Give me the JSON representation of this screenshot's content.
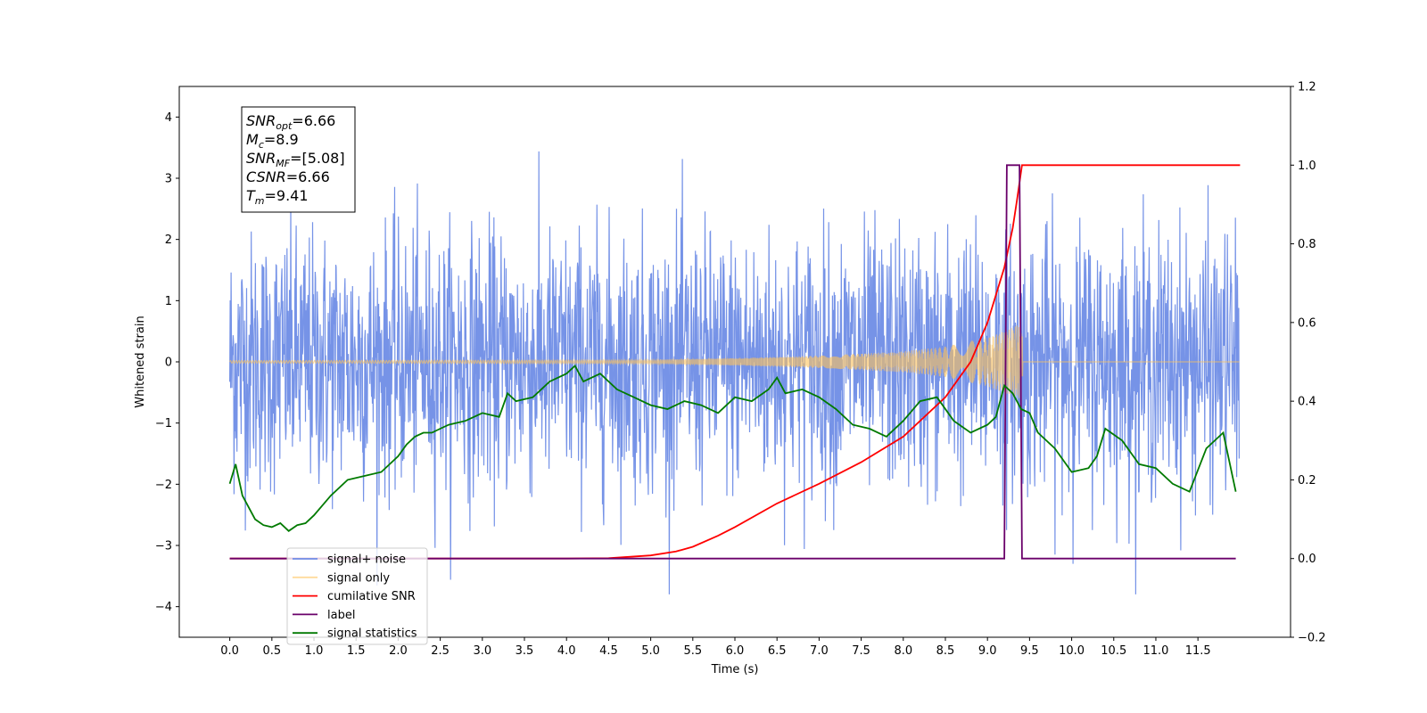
{
  "chart_data": {
    "type": "line",
    "xlabel": "Time (s)",
    "ylabel": "Whitened strain",
    "xlim": [
      -0.6,
      12.6
    ],
    "ylim": [
      -4.5,
      4.5
    ],
    "y2lim": [
      -0.2,
      1.2
    ],
    "x_ticks": [
      "0.0",
      "0.5",
      "1.0",
      "1.5",
      "2.0",
      "2.5",
      "3.0",
      "3.5",
      "4.0",
      "4.5",
      "5.0",
      "5.5",
      "6.0",
      "6.5",
      "7.0",
      "7.5",
      "8.0",
      "8.5",
      "9.0",
      "9.5",
      "10.0",
      "10.5",
      "11.0",
      "11.5"
    ],
    "y_ticks": [
      "4",
      "3",
      "2",
      "1",
      "0",
      "−1",
      "−2",
      "−3",
      "−4"
    ],
    "y2_ticks": [
      "1.2",
      "1.0",
      "0.8",
      "0.6",
      "0.4",
      "0.2",
      "0.0",
      "−0.2"
    ],
    "grid": false,
    "legend_position": "lower-left",
    "annotation": {
      "lines": [
        {
          "sym": "SNR",
          "sub": "opt",
          "rest": "=6.66"
        },
        {
          "sym": "M",
          "sub": "c",
          "rest": "=8.9"
        },
        {
          "sym": "SNR",
          "sub": "MF",
          "rest": "=[5.08]"
        },
        {
          "sym": "CSNR",
          "sub": "",
          "rest": "=6.66"
        },
        {
          "sym": "T",
          "sub": "m",
          "rest": "=9.41"
        }
      ]
    },
    "series": [
      {
        "name": "signal+ noise",
        "color": "#6f8de6",
        "axis": "left",
        "note": "white noise, amplitude approx within [-3.8, 3.6] over t in [0, 11.99]"
      },
      {
        "name": "signal only",
        "color": "#ffc35a",
        "axis": "left",
        "envelope": {
          "x": [
            0,
            5,
            6,
            7,
            8,
            8.5,
            9,
            9.2,
            9.35,
            9.41,
            9.42,
            12.0
          ],
          "amp": [
            0.02,
            0.03,
            0.06,
            0.1,
            0.17,
            0.25,
            0.4,
            0.5,
            0.6,
            0.62,
            0.0,
            0.0
          ]
        }
      },
      {
        "name": "cumilative SNR",
        "color": "#ff0000",
        "axis": "right",
        "x": [
          0,
          4.0,
          4.5,
          5.0,
          5.3,
          5.5,
          5.8,
          6.0,
          6.5,
          7.0,
          7.5,
          8.0,
          8.5,
          8.8,
          9.0,
          9.2,
          9.3,
          9.35,
          9.41,
          9.42,
          12.0
        ],
        "values": [
          0,
          0,
          0.001,
          0.008,
          0.018,
          0.03,
          0.058,
          0.08,
          0.14,
          0.19,
          0.245,
          0.31,
          0.41,
          0.5,
          0.6,
          0.74,
          0.84,
          0.91,
          1.0,
          1.0,
          1.0
        ]
      },
      {
        "name": "label",
        "color": "#6a006a",
        "axis": "right",
        "x": [
          0,
          9.2,
          9.23,
          9.38,
          9.41,
          11.95
        ],
        "values": [
          0,
          0,
          1,
          1,
          0,
          0
        ]
      },
      {
        "name": "signal statistics",
        "color": "#007a00",
        "axis": "right",
        "x": [
          0,
          0.07,
          0.15,
          0.3,
          0.4,
          0.5,
          0.6,
          0.7,
          0.8,
          0.9,
          1.0,
          1.2,
          1.4,
          1.6,
          1.8,
          2.0,
          2.1,
          2.2,
          2.3,
          2.4,
          2.5,
          2.6,
          2.8,
          3.0,
          3.2,
          3.3,
          3.4,
          3.6,
          3.8,
          4.0,
          4.1,
          4.2,
          4.4,
          4.6,
          4.8,
          5.0,
          5.2,
          5.4,
          5.6,
          5.8,
          6.0,
          6.2,
          6.4,
          6.5,
          6.6,
          6.8,
          7.0,
          7.2,
          7.4,
          7.6,
          7.8,
          8.0,
          8.2,
          8.4,
          8.6,
          8.8,
          9.0,
          9.1,
          9.2,
          9.3,
          9.4,
          9.5,
          9.6,
          9.8,
          10.0,
          10.2,
          10.3,
          10.4,
          10.6,
          10.8,
          11.0,
          11.2,
          11.4,
          11.6,
          11.8,
          11.95
        ],
        "values": [
          0.19,
          0.24,
          0.16,
          0.1,
          0.085,
          0.08,
          0.09,
          0.07,
          0.085,
          0.09,
          0.11,
          0.16,
          0.2,
          0.21,
          0.22,
          0.26,
          0.29,
          0.31,
          0.32,
          0.32,
          0.33,
          0.34,
          0.35,
          0.37,
          0.36,
          0.42,
          0.4,
          0.41,
          0.45,
          0.47,
          0.49,
          0.45,
          0.47,
          0.43,
          0.41,
          0.39,
          0.38,
          0.4,
          0.39,
          0.37,
          0.41,
          0.4,
          0.43,
          0.46,
          0.42,
          0.43,
          0.41,
          0.38,
          0.34,
          0.33,
          0.31,
          0.35,
          0.4,
          0.41,
          0.35,
          0.32,
          0.34,
          0.36,
          0.44,
          0.42,
          0.38,
          0.37,
          0.32,
          0.28,
          0.22,
          0.23,
          0.26,
          0.33,
          0.3,
          0.24,
          0.23,
          0.19,
          0.17,
          0.28,
          0.32,
          0.17
        ]
      }
    ]
  }
}
